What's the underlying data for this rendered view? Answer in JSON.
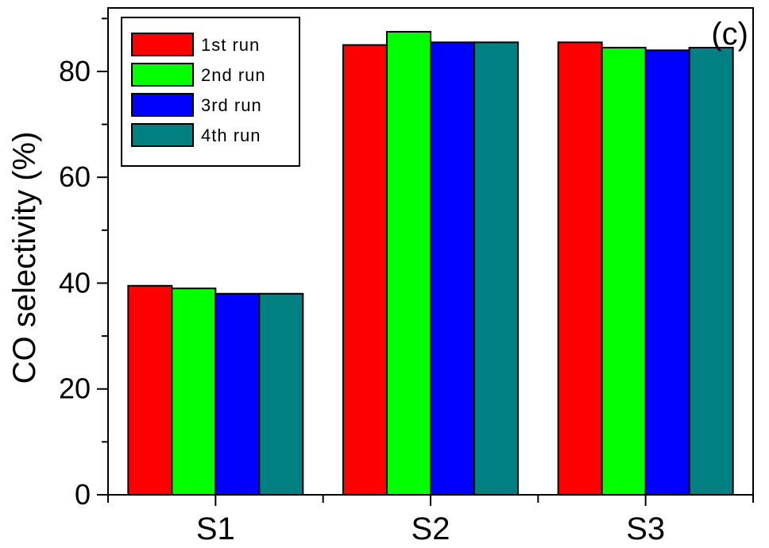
{
  "chart_data": {
    "type": "bar",
    "panel_label": "(c)",
    "ylabel": "CO selectivity (%)",
    "xlabel": "",
    "ylim": [
      0,
      92
    ],
    "yticks": [
      0,
      20,
      40,
      60,
      80
    ],
    "categories": [
      "S1",
      "S2",
      "S3"
    ],
    "legend_position": "top-left",
    "grid": false,
    "series": [
      {
        "name": "1st run",
        "color": "#ff0000",
        "values": [
          39.5,
          85.0,
          85.5
        ]
      },
      {
        "name": "2nd run",
        "color": "#00ff00",
        "values": [
          39.0,
          87.5,
          84.5
        ]
      },
      {
        "name": "3rd run",
        "color": "#0000ff",
        "values": [
          38.0,
          85.5,
          84.0
        ]
      },
      {
        "name": "4th run",
        "color": "#008080",
        "values": [
          38.0,
          85.5,
          84.5
        ]
      }
    ]
  }
}
